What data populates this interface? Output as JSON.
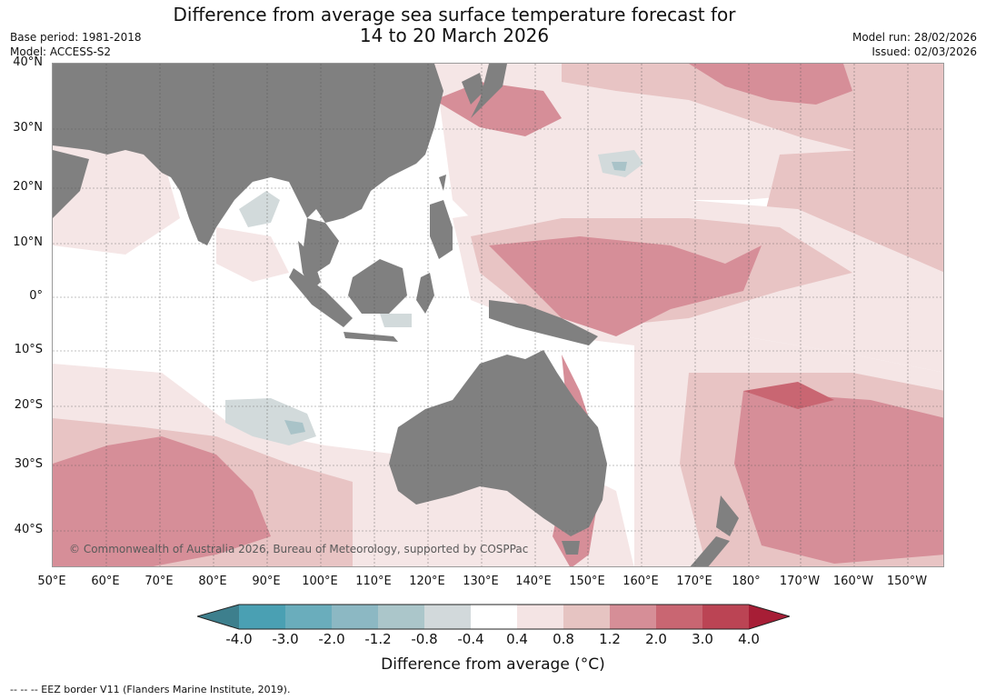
{
  "header": {
    "title_line1": "Difference from average sea surface temperature forecast for",
    "title_line2": "14 to 20 March 2026",
    "base_period": "Base period: 1981-2018",
    "model": "Model: ACCESS-S2",
    "model_run": "Model run: 28/02/2026",
    "issued": "Issued: 02/03/2026"
  },
  "map": {
    "lat_labels": [
      "40°N",
      "30°N",
      "20°N",
      "10°N",
      "0°",
      "10°S",
      "20°S",
      "30°S",
      "40°S"
    ],
    "lon_labels": [
      "50°E",
      "60°E",
      "70°E",
      "80°E",
      "90°E",
      "100°E",
      "110°E",
      "120°E",
      "130°E",
      "140°E",
      "150°E",
      "160°E",
      "170°E",
      "180°",
      "170°W",
      "160°W",
      "150°W"
    ],
    "copyright": "© Commonwealth of Australia 2026, Bureau of Meteorology, supported by COSPPac",
    "colors": {
      "land": "#808080",
      "ocean_neutral": "#ffffff",
      "warm_light": "#f5e6e6",
      "warm_mid": "#e8c4c4",
      "warm_strong": "#d68e98",
      "warm_stronger": "#c96672",
      "cool_light": "#d2dadb",
      "cool_mid": "#a9c3c8"
    }
  },
  "colorbar": {
    "ticks": [
      "-4.0",
      "-3.0",
      "-2.0",
      "-1.2",
      "-0.8",
      "-0.4",
      "0.4",
      "0.8",
      "1.2",
      "2.0",
      "3.0",
      "4.0"
    ],
    "colors": [
      "#3d7f8d",
      "#4aa0b3",
      "#6aadbc",
      "#8cb8c3",
      "#abc6ca",
      "#d2d9db",
      "#ffffff",
      "#f4e4e4",
      "#e6c4c2",
      "#d68e97",
      "#c96672",
      "#bb4454",
      "#a71e36"
    ],
    "label": "Difference from average (°C)"
  },
  "footnote": "--  --  -- EEZ border V11 (Flanders Marine Institute, 2019)."
}
